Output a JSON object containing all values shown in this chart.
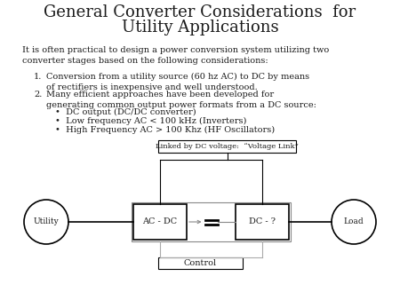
{
  "title_line1": "General Converter Considerations  for",
  "title_line2": "Utility Applications",
  "title_fontsize": 13,
  "body_text": "It is often practical to design a power conversion system utilizing two\nconverter stages based on the following considerations:",
  "body_fontsize": 7,
  "item1_num": "1.",
  "item1_text": "Conversion from a utility source (60 hz AC) to DC by means\nof rectifiers is inexpensive and well understood.",
  "item2_num": "2.",
  "item2_text": "Many efficient approaches have been developed for\ngenerating common output power formats from a DC source:",
  "bullet1": "•  DC output (DC/DC converter)",
  "bullet2": "•  Low frequency AC < 100 kHz (Inverters)",
  "bullet3": "•  High Frequency AC > 100 Khz (HF Oscillators)",
  "link_label": "Linked by DC voltage:  “Voltage Link”",
  "ac_dc_label": "AC - DC",
  "dc_label": "DC - ?",
  "utility_label": "Utility",
  "load_label": "Load",
  "control_label": "Control",
  "bg_color": "#ffffff",
  "text_color": "#1a1a1a",
  "item_fontsize": 7,
  "diagram_fontsize": 7,
  "fig_width": 4.5,
  "fig_height": 3.38,
  "dpi": 100
}
